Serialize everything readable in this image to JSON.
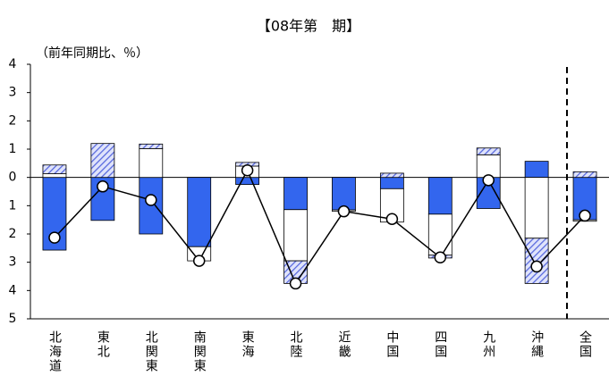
{
  "chart_data": {
    "type": "stacked-bar-line",
    "title": "【08年第　期】",
    "y_label": "（前年同期比、％）",
    "categories": [
      "北海道",
      "東北",
      "北関東",
      "南関東",
      "東海",
      "北陸",
      "近畿",
      "中国",
      "四国",
      "九州",
      "沖縄",
      "全国"
    ],
    "ylim": [
      -5,
      4
    ],
    "yticks": [
      4,
      3,
      2,
      1,
      0,
      {
        "value": -1,
        "label": "1"
      },
      {
        "value": -2,
        "label": "2"
      },
      {
        "value": -3,
        "label": "3"
      },
      {
        "value": -4,
        "label": "4"
      },
      {
        "value": -5,
        "label": "5"
      }
    ],
    "series": [
      {
        "color": "#3366ee",
        "hatch": false,
        "values": [
          -2.57,
          -1.52,
          -2.0,
          -2.45,
          -0.25,
          -1.14,
          -1.15,
          -0.4,
          -1.3,
          -1.1,
          0.57,
          -1.5
        ]
      },
      {
        "color": "#ffffff",
        "hatch": false,
        "values": [
          0.13,
          0,
          1.02,
          -0.5,
          0.4,
          -1.81,
          -0.05,
          -1.18,
          -1.45,
          0.8,
          -2.15,
          -0.05
        ]
      },
      {
        "color": "#5566dd",
        "hatch": true,
        "values": [
          0.31,
          1.2,
          0.16,
          0,
          0.13,
          -0.8,
          0,
          0.15,
          -0.1,
          0.24,
          -1.6,
          0.2
        ]
      }
    ],
    "line": {
      "color": "#000000",
      "values": [
        -2.13,
        -0.32,
        -0.8,
        -2.95,
        0.25,
        -3.75,
        -1.2,
        -1.47,
        -2.83,
        -0.1,
        -3.15,
        -1.35
      ]
    }
  }
}
